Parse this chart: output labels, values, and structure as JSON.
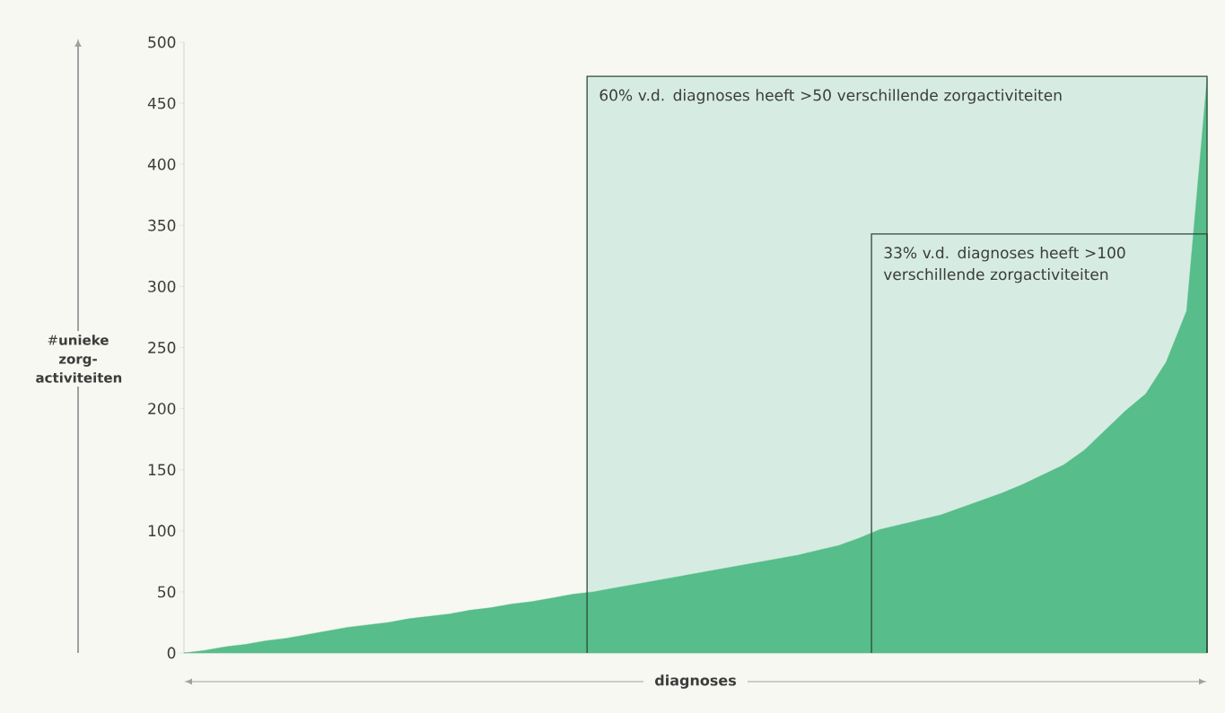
{
  "chart_data": {
    "type": "area",
    "ylabel": "#**unieke zorg-activiteiten**",
    "xlabel": "diagnoses",
    "color": "#57bd8a",
    "categories": [
      null,
      null,
      null,
      null,
      null,
      null,
      null,
      null,
      null,
      null,
      null,
      null,
      null,
      null,
      null,
      null,
      null,
      null,
      null,
      null,
      null,
      null,
      null,
      null,
      null,
      null,
      null,
      null,
      null,
      null,
      null,
      null,
      null,
      null,
      null,
      null,
      null,
      null,
      null,
      null,
      null,
      null,
      null,
      null,
      null,
      null,
      null,
      null,
      null,
      null,
      null
    ],
    "values": [
      0,
      2,
      5,
      7,
      10,
      12,
      15,
      18,
      21,
      23,
      25,
      28,
      30,
      32,
      35,
      37,
      40,
      42,
      45,
      48,
      50,
      53,
      56,
      59,
      62,
      65,
      68,
      71,
      74,
      77,
      80,
      84,
      88,
      94,
      101,
      105,
      109,
      113,
      119,
      125,
      131,
      138,
      146,
      154,
      166,
      182,
      198,
      212,
      238,
      280,
      470
    ],
    "ylim": [
      0,
      500
    ],
    "yticks": [
      0,
      50,
      100,
      150,
      200,
      250,
      300,
      350,
      400,
      450,
      500
    ],
    "tick_labels": "y",
    "annotations": [
      "60% v.d. diagnoses heeft >50 verschillende zorgactiviteiten",
      "33% v.d. diagnoses heeft >100 verschillende zorgactiviteiten"
    ]
  }
}
